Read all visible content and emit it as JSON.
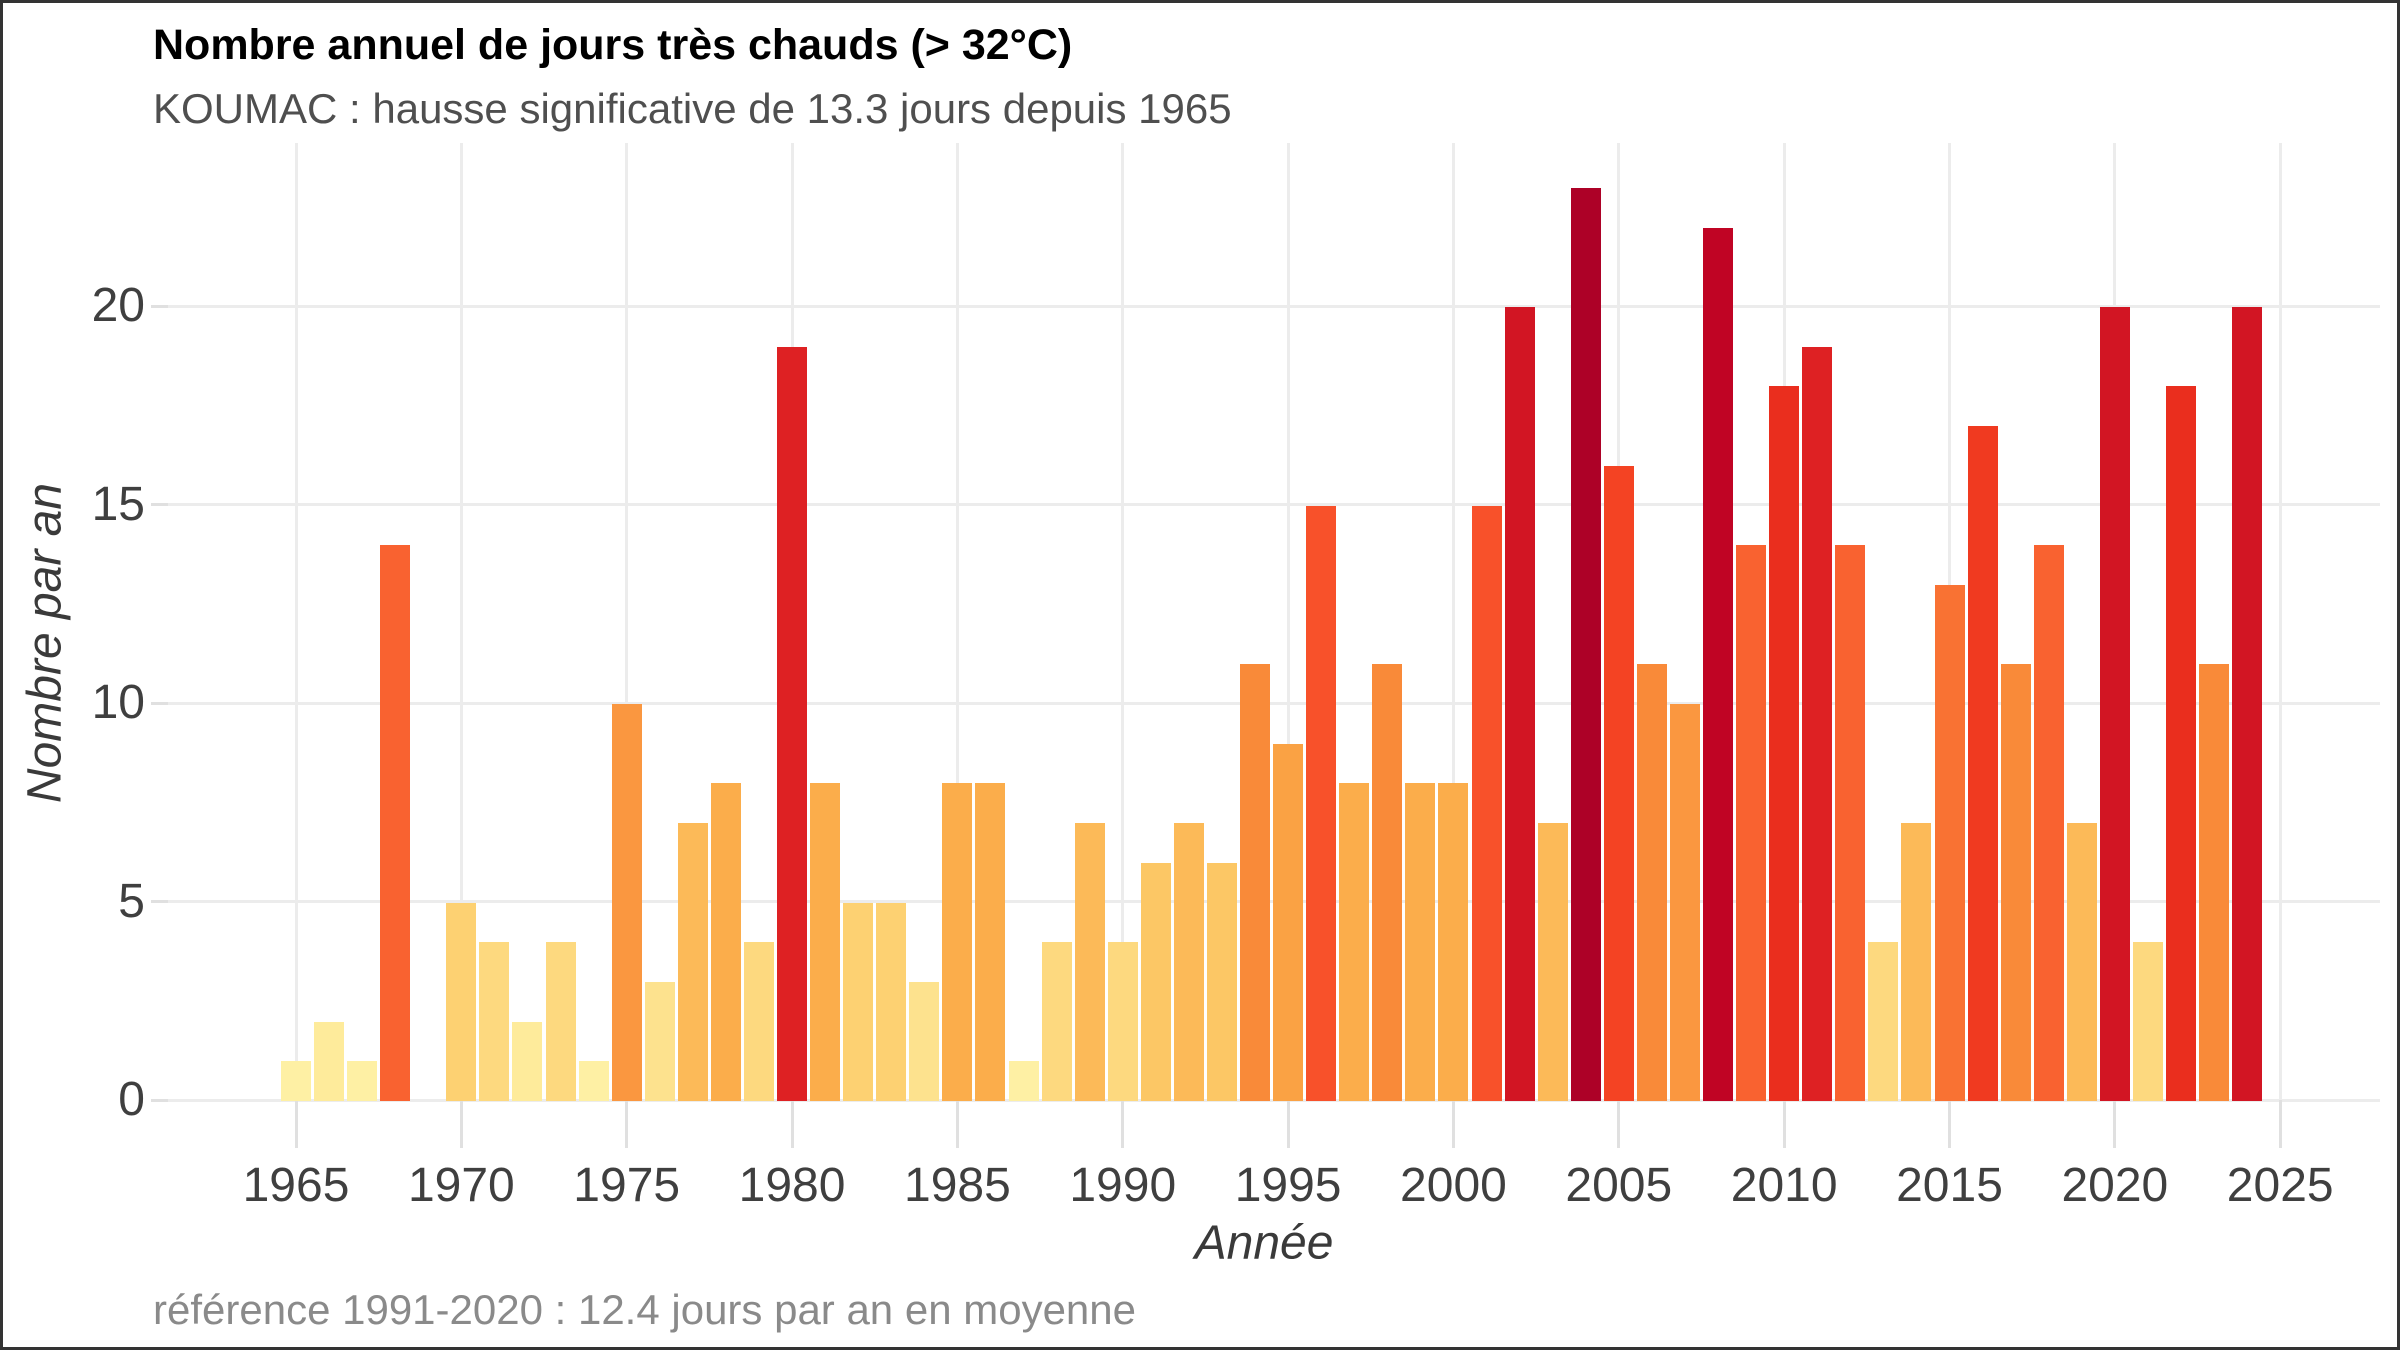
{
  "chart_data": {
    "type": "bar",
    "title": "Nombre annuel de jours très chauds (> 32°C)",
    "subtitle": "KOUMAC : hausse significative de 13.3 jours depuis 1965",
    "caption": "référence 1991-2020 : 12.4 jours par an en moyenne",
    "xlabel": "Année",
    "ylabel": "Nombre par an",
    "x_ticks": [
      1965,
      1970,
      1975,
      1980,
      1985,
      1990,
      1995,
      2000,
      2005,
      2010,
      2015,
      2020,
      2025
    ],
    "y_ticks": [
      0,
      5,
      10,
      15,
      20
    ],
    "xlim": [
      1961,
      2028
    ],
    "ylim": [
      0,
      24
    ],
    "grid": true,
    "legend": false,
    "palette_name": "YlOrRd heat scale mapped to value",
    "bars": [
      {
        "year": 1965,
        "value": 1,
        "color": "#fef0a4"
      },
      {
        "year": 1966,
        "value": 2,
        "color": "#feeb9b"
      },
      {
        "year": 1967,
        "value": 1,
        "color": "#fef0a4"
      },
      {
        "year": 1968,
        "value": 14,
        "color": "#f96230"
      },
      {
        "year": 1969,
        "value": null,
        "color": null
      },
      {
        "year": 1970,
        "value": 5,
        "color": "#fdd172"
      },
      {
        "year": 1971,
        "value": 4,
        "color": "#fdd97f"
      },
      {
        "year": 1972,
        "value": 2,
        "color": "#feeb9b"
      },
      {
        "year": 1973,
        "value": 4,
        "color": "#fdd97f"
      },
      {
        "year": 1974,
        "value": 1,
        "color": "#fef0a4"
      },
      {
        "year": 1975,
        "value": 10,
        "color": "#fa9740"
      },
      {
        "year": 1976,
        "value": 3,
        "color": "#fde28e"
      },
      {
        "year": 1977,
        "value": 7,
        "color": "#fcba58"
      },
      {
        "year": 1978,
        "value": 8,
        "color": "#fbad4b"
      },
      {
        "year": 1979,
        "value": 4,
        "color": "#fdd97f"
      },
      {
        "year": 1980,
        "value": 19,
        "color": "#de2123"
      },
      {
        "year": 1981,
        "value": 8,
        "color": "#fbad4b"
      },
      {
        "year": 1982,
        "value": 5,
        "color": "#fdd172"
      },
      {
        "year": 1983,
        "value": 5,
        "color": "#fdd172"
      },
      {
        "year": 1984,
        "value": 3,
        "color": "#fde28e"
      },
      {
        "year": 1985,
        "value": 8,
        "color": "#fbad4b"
      },
      {
        "year": 1986,
        "value": 8,
        "color": "#fbad4b"
      },
      {
        "year": 1987,
        "value": 1,
        "color": "#fef0a4"
      },
      {
        "year": 1988,
        "value": 4,
        "color": "#fdd97f"
      },
      {
        "year": 1989,
        "value": 7,
        "color": "#fcba58"
      },
      {
        "year": 1990,
        "value": 4,
        "color": "#fdd97f"
      },
      {
        "year": 1991,
        "value": 6,
        "color": "#fcc765"
      },
      {
        "year": 1992,
        "value": 7,
        "color": "#fcba58"
      },
      {
        "year": 1993,
        "value": 6,
        "color": "#fcc765"
      },
      {
        "year": 1994,
        "value": 11,
        "color": "#f98a39"
      },
      {
        "year": 1995,
        "value": 9,
        "color": "#faa244"
      },
      {
        "year": 1996,
        "value": 15,
        "color": "#f8512a"
      },
      {
        "year": 1997,
        "value": 8,
        "color": "#fbad4b"
      },
      {
        "year": 1998,
        "value": 11,
        "color": "#f98a39"
      },
      {
        "year": 1999,
        "value": 8,
        "color": "#fbad4b"
      },
      {
        "year": 2000,
        "value": 8,
        "color": "#fbad4b"
      },
      {
        "year": 2001,
        "value": 15,
        "color": "#f8512a"
      },
      {
        "year": 2002,
        "value": 20,
        "color": "#d21523"
      },
      {
        "year": 2003,
        "value": 7,
        "color": "#fcba58"
      },
      {
        "year": 2004,
        "value": 23,
        "color": "#ad0127"
      },
      {
        "year": 2005,
        "value": 16,
        "color": "#f44323"
      },
      {
        "year": 2006,
        "value": 11,
        "color": "#f98a39"
      },
      {
        "year": 2007,
        "value": 10,
        "color": "#fa9740"
      },
      {
        "year": 2008,
        "value": 22,
        "color": "#c00424"
      },
      {
        "year": 2009,
        "value": 14,
        "color": "#f96230"
      },
      {
        "year": 2010,
        "value": 18,
        "color": "#ea2e1e"
      },
      {
        "year": 2011,
        "value": 19,
        "color": "#de2123"
      },
      {
        "year": 2012,
        "value": 14,
        "color": "#f96230"
      },
      {
        "year": 2013,
        "value": 4,
        "color": "#fdd97f"
      },
      {
        "year": 2014,
        "value": 7,
        "color": "#fcba58"
      },
      {
        "year": 2015,
        "value": 13,
        "color": "#f97233"
      },
      {
        "year": 2016,
        "value": 17,
        "color": "#f03a20"
      },
      {
        "year": 2017,
        "value": 11,
        "color": "#f98a39"
      },
      {
        "year": 2018,
        "value": 14,
        "color": "#f96230"
      },
      {
        "year": 2019,
        "value": 7,
        "color": "#fcba58"
      },
      {
        "year": 2020,
        "value": 20,
        "color": "#d21523"
      },
      {
        "year": 2021,
        "value": 4,
        "color": "#fdd97f"
      },
      {
        "year": 2022,
        "value": 18,
        "color": "#ea2e1e"
      },
      {
        "year": 2023,
        "value": 11,
        "color": "#f98a39"
      },
      {
        "year": 2024,
        "value": 20,
        "color": "#d21523"
      }
    ]
  },
  "colors": {
    "background": "#ffffff",
    "border": "#333333",
    "gridline": "#ececec",
    "tick": "#e0e0e0",
    "title_text": "#000000",
    "subtitle_text": "#4f4f4f",
    "axis_text": "#3f3f3f",
    "axis_title_text": "#3a3a3a",
    "caption_text": "#8a8a8a"
  }
}
